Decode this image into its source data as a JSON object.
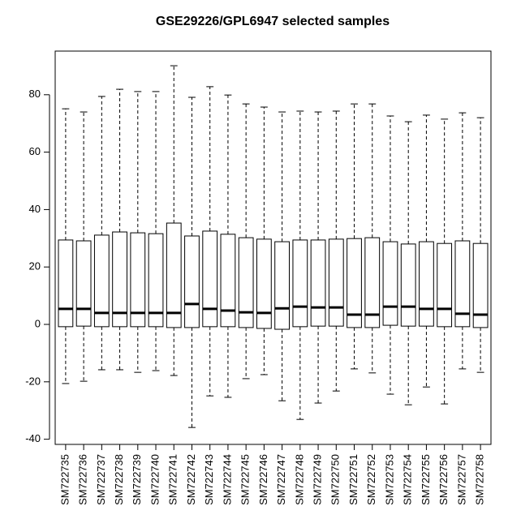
{
  "chart_data": {
    "type": "boxplot",
    "title": "GSE29226/GPL6947 selected samples",
    "categories": [
      "SM722735",
      "SM722736",
      "SM722737",
      "SM722738",
      "SM722739",
      "SM722740",
      "SM722741",
      "SM722742",
      "SM722743",
      "SM722744",
      "SM722745",
      "SM722746",
      "SM722747",
      "SM722748",
      "SM722749",
      "SM722750",
      "SM722751",
      "SM722752",
      "SM722753",
      "SM722754",
      "SM722755",
      "SM722756",
      "SM722757",
      "SM722758"
    ],
    "whisker_low": [
      -20.6,
      -19.8,
      -15.8,
      -15.8,
      -16.7,
      -16.1,
      -17.8,
      -35.9,
      -24.9,
      -25.4,
      -18.9,
      -17.5,
      -26.6,
      -33.1,
      -27.4,
      -23.2,
      -15.5,
      -16.9,
      -24.3,
      -28,
      -21.8,
      -27.7,
      -15.5,
      -16.7
    ],
    "q1": [
      -0.8,
      -0.6,
      -0.8,
      -0.8,
      -0.8,
      -0.8,
      -1.1,
      -1.1,
      -0.8,
      -0.8,
      -1.1,
      -1.4,
      -1.7,
      -0.8,
      -0.6,
      -0.6,
      -1.1,
      -1.1,
      -0.3,
      -0.6,
      -0.6,
      -0.8,
      -0.8,
      -1.1
    ],
    "median": [
      5.4,
      5.4,
      4,
      4,
      4,
      4,
      4,
      7.1,
      5.4,
      4.8,
      4.2,
      4,
      5.6,
      6.2,
      5.9,
      5.9,
      3.4,
      3.4,
      6.2,
      6.2,
      5.4,
      5.4,
      3.7,
      3.4
    ],
    "q3": [
      29.4,
      29.1,
      31.1,
      32.2,
      31.9,
      31.6,
      35.3,
      30.8,
      32.5,
      31.4,
      30.2,
      29.7,
      28.8,
      29.4,
      29.4,
      29.7,
      29.9,
      30.2,
      28.8,
      28,
      28.8,
      28.2,
      29.1,
      28.2
    ],
    "whisker_high": [
      75.1,
      74,
      79.4,
      81.9,
      81.1,
      81.1,
      90.1,
      79.1,
      82.8,
      79.9,
      76.8,
      75.7,
      74,
      74.3,
      74,
      74.3,
      76.8,
      76.8,
      72.6,
      70.6,
      72.9,
      71.5,
      73.7,
      72
    ],
    "ylim": [
      -41.8,
      95.2
    ],
    "yticks": [
      -40,
      -20,
      0,
      20,
      40,
      60,
      80
    ],
    "color": "#ffffff"
  }
}
